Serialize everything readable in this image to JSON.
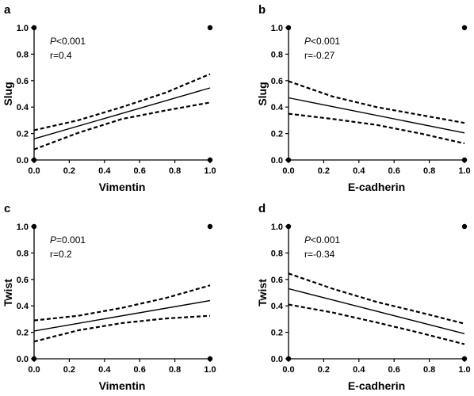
{
  "colors": {
    "ink": "#000000",
    "background": "#ffffff"
  },
  "chart_data": [
    {
      "type": "line",
      "panel": "a",
      "xlabel": "Vimentin",
      "ylabel": "Slug",
      "xlim": [
        0,
        1
      ],
      "ylim": [
        0,
        1
      ],
      "x_ticks": [
        "0.0",
        "0.2",
        "0.4",
        "0.6",
        "0.8",
        "1.0"
      ],
      "y_ticks": [
        "0.0",
        "0.2",
        "0.4",
        "0.6",
        "0.8",
        "1.0"
      ],
      "stats": {
        "p_symbol": "P",
        "p_rest": "<0.001",
        "r_text": "r=0.4"
      },
      "fit": {
        "x": [
          0,
          1
        ],
        "y": [
          0.16,
          0.545
        ]
      },
      "ci_upper": {
        "x": [
          0,
          0.25,
          0.5,
          0.75,
          1
        ],
        "y": [
          0.225,
          0.3,
          0.4,
          0.51,
          0.65
        ]
      },
      "ci_lower": {
        "x": [
          0,
          0.25,
          0.5,
          0.75,
          1
        ],
        "y": [
          0.08,
          0.205,
          0.31,
          0.375,
          0.435
        ]
      },
      "points": [
        {
          "x": 0,
          "y": 0
        },
        {
          "x": 1,
          "y": 0
        },
        {
          "x": 0,
          "y": 1
        },
        {
          "x": 1,
          "y": 1
        }
      ]
    },
    {
      "type": "line",
      "panel": "b",
      "xlabel": "E-cadherin",
      "ylabel": "Slug",
      "xlim": [
        0,
        1
      ],
      "ylim": [
        0,
        1
      ],
      "x_ticks": [
        "0.0",
        "0.2",
        "0.4",
        "0.6",
        "0.8",
        "1.0"
      ],
      "y_ticks": [
        "0.0",
        "0.2",
        "0.4",
        "0.6",
        "0.8",
        "1.0"
      ],
      "stats": {
        "p_symbol": "P",
        "p_rest": "<0.001",
        "r_text": "r=-0.27"
      },
      "fit": {
        "x": [
          0,
          1
        ],
        "y": [
          0.47,
          0.205
        ]
      },
      "ci_upper": {
        "x": [
          0,
          0.25,
          0.5,
          0.75,
          1
        ],
        "y": [
          0.595,
          0.48,
          0.4,
          0.34,
          0.28
        ]
      },
      "ci_lower": {
        "x": [
          0,
          0.25,
          0.5,
          0.75,
          1
        ],
        "y": [
          0.35,
          0.31,
          0.265,
          0.2,
          0.125
        ]
      },
      "points": [
        {
          "x": 0,
          "y": 0
        },
        {
          "x": 1,
          "y": 0
        },
        {
          "x": 0,
          "y": 1
        },
        {
          "x": 1,
          "y": 1
        }
      ]
    },
    {
      "type": "line",
      "panel": "c",
      "xlabel": "Vimentin",
      "ylabel": "Twist",
      "xlim": [
        0,
        1
      ],
      "ylim": [
        0,
        1
      ],
      "x_ticks": [
        "0.0",
        "0.2",
        "0.4",
        "0.6",
        "0.8",
        "1.0"
      ],
      "y_ticks": [
        "0.0",
        "0.2",
        "0.4",
        "0.6",
        "0.8",
        "1.0"
      ],
      "stats": {
        "p_symbol": "P",
        "p_rest": "=0.001",
        "r_text": "r=0.2"
      },
      "fit": {
        "x": [
          0,
          1
        ],
        "y": [
          0.21,
          0.44
        ]
      },
      "ci_upper": {
        "x": [
          0,
          0.25,
          0.5,
          0.75,
          1
        ],
        "y": [
          0.29,
          0.325,
          0.385,
          0.46,
          0.555
        ]
      },
      "ci_lower": {
        "x": [
          0,
          0.25,
          0.5,
          0.75,
          1
        ],
        "y": [
          0.13,
          0.215,
          0.27,
          0.305,
          0.325
        ]
      },
      "points": [
        {
          "x": 0,
          "y": 0
        },
        {
          "x": 1,
          "y": 0
        },
        {
          "x": 0,
          "y": 1
        },
        {
          "x": 1,
          "y": 1
        }
      ]
    },
    {
      "type": "line",
      "panel": "d",
      "xlabel": "E-cadherin",
      "ylabel": "Twist",
      "xlim": [
        0,
        1
      ],
      "ylim": [
        0,
        1
      ],
      "x_ticks": [
        "0.0",
        "0.2",
        "0.4",
        "0.6",
        "0.8",
        "1.0"
      ],
      "y_ticks": [
        "0.0",
        "0.2",
        "0.4",
        "0.6",
        "0.8",
        "1.0"
      ],
      "stats": {
        "p_symbol": "P",
        "p_rest": "<0.001",
        "r_text": "r=-0.34"
      },
      "fit": {
        "x": [
          0,
          1
        ],
        "y": [
          0.53,
          0.19
        ]
      },
      "ci_upper": {
        "x": [
          0,
          0.25,
          0.5,
          0.75,
          1
        ],
        "y": [
          0.645,
          0.53,
          0.43,
          0.35,
          0.265
        ]
      },
      "ci_lower": {
        "x": [
          0,
          0.25,
          0.5,
          0.75,
          1
        ],
        "y": [
          0.41,
          0.35,
          0.275,
          0.195,
          0.11
        ]
      },
      "points": [
        {
          "x": 0,
          "y": 0
        },
        {
          "x": 1,
          "y": 0
        },
        {
          "x": 0,
          "y": 1
        },
        {
          "x": 1,
          "y": 1
        }
      ]
    }
  ]
}
